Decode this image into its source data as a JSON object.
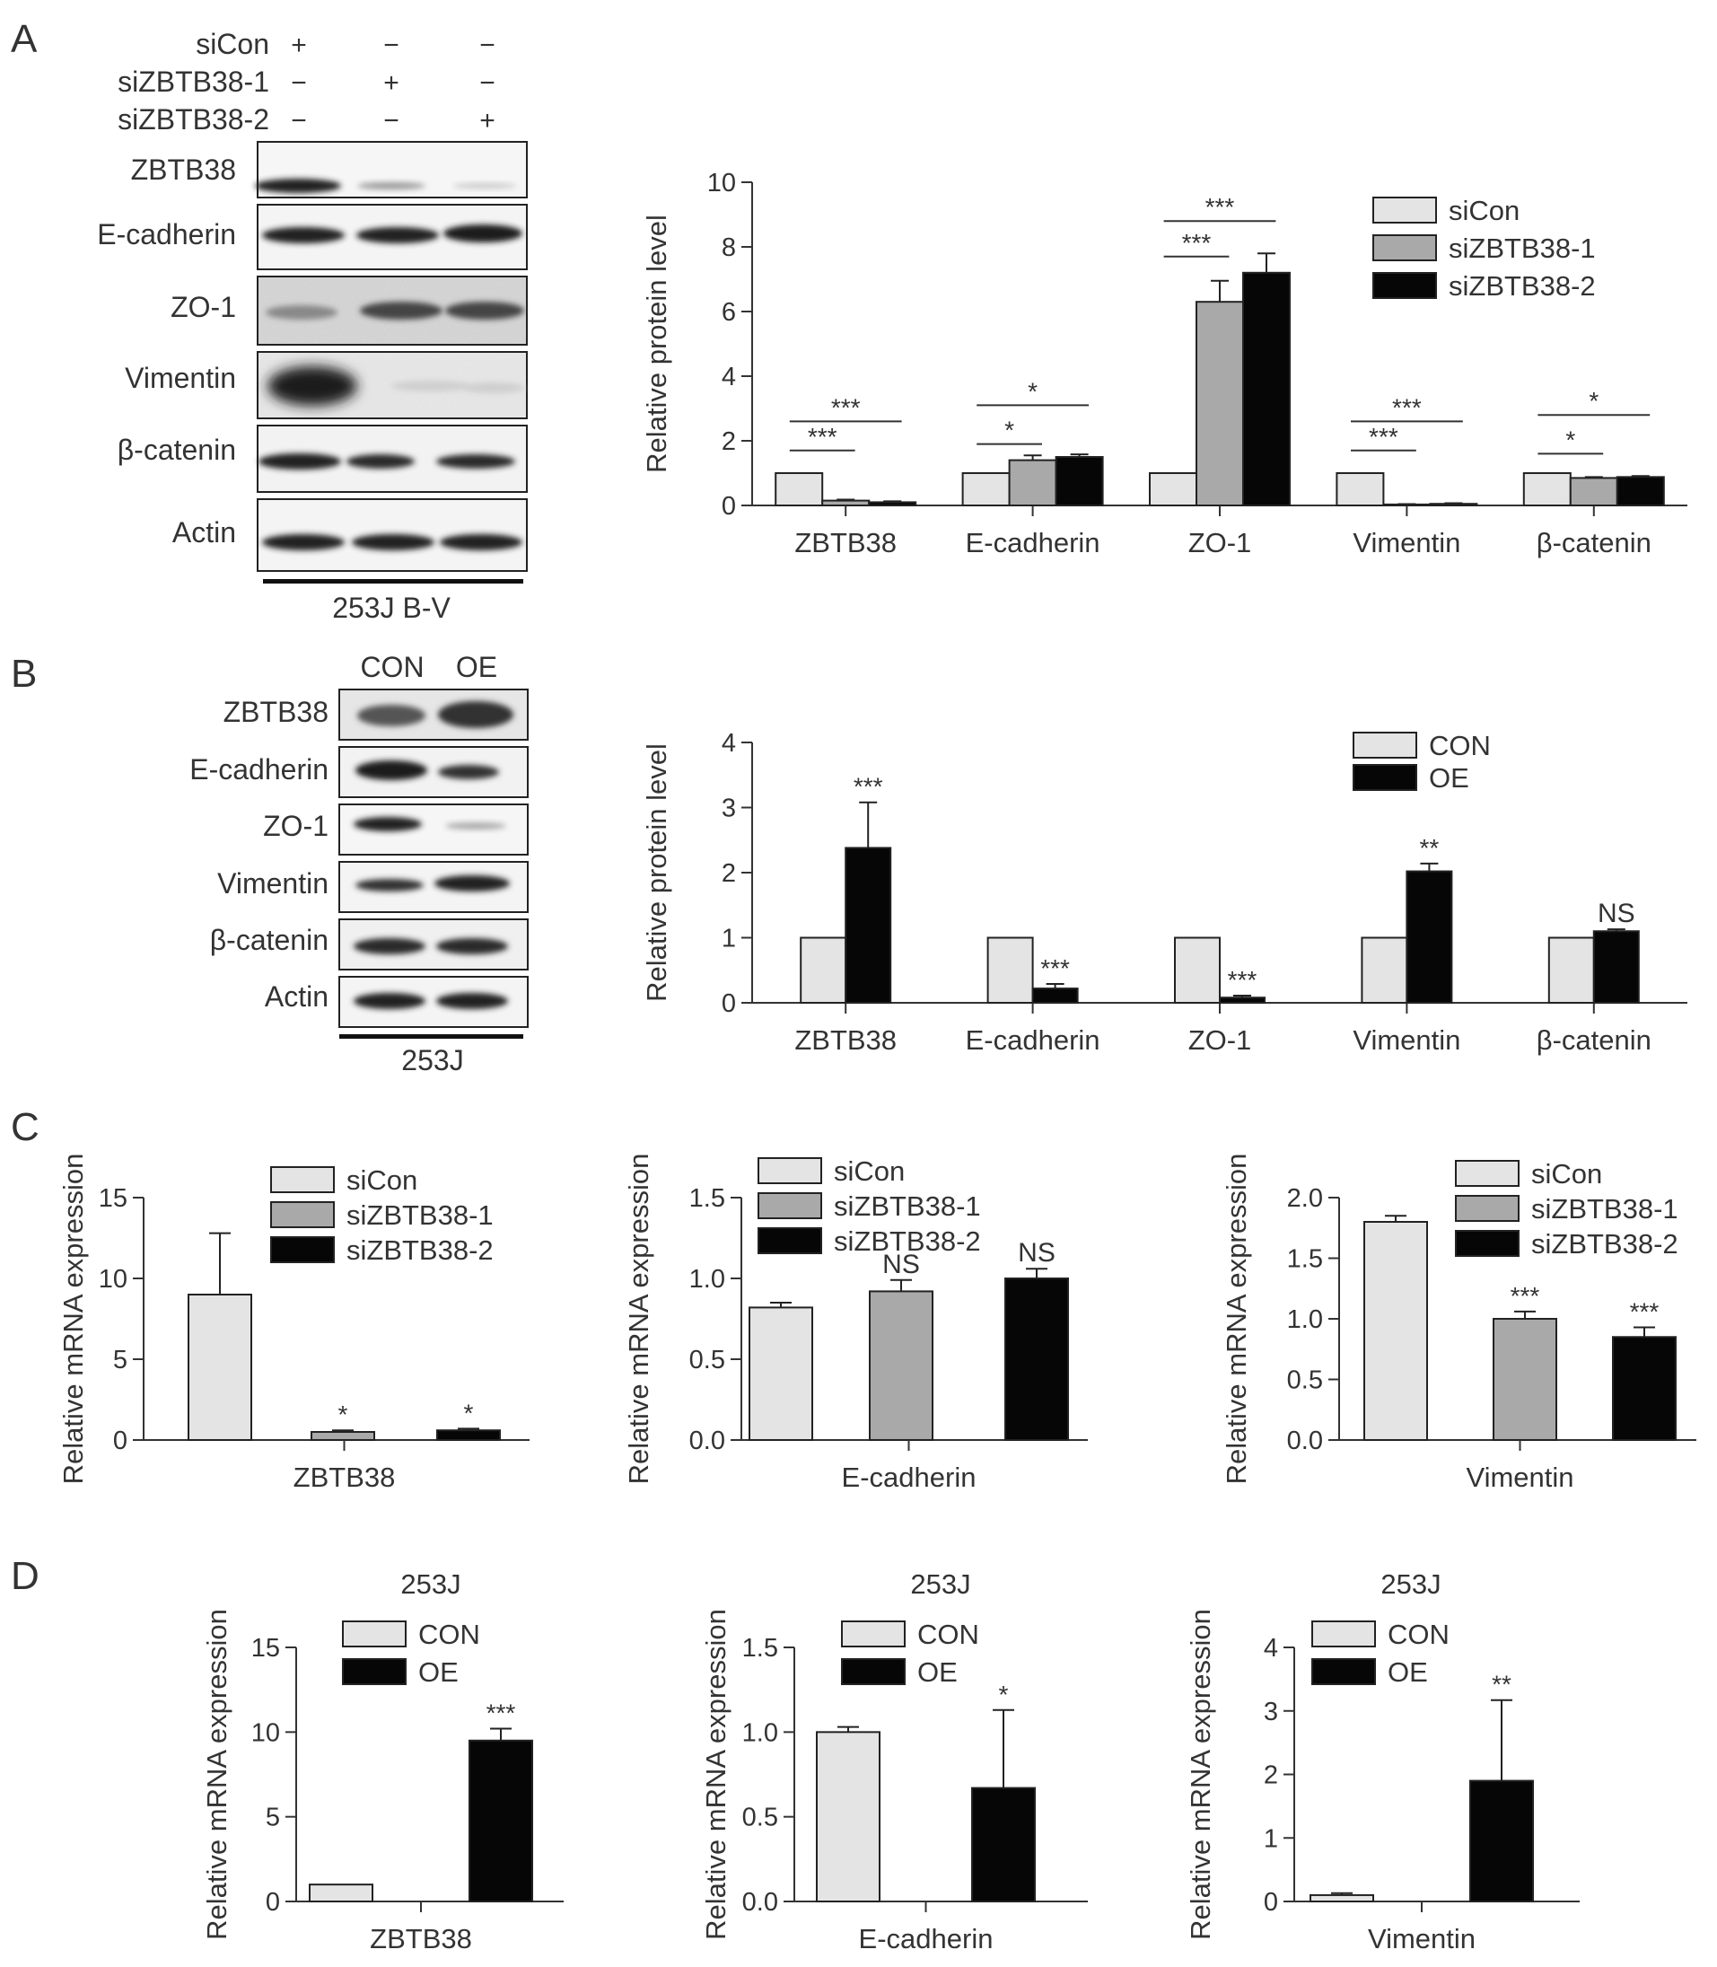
{
  "colors": {
    "light": "#e4e4e4",
    "gray": "#a9a9a9",
    "black": "#060606",
    "text": "#333333"
  },
  "panel_letters": [
    "A",
    "B",
    "C",
    "D"
  ],
  "panelA_blot": {
    "conditions": [
      {
        "label": "siCon",
        "marks": [
          "+",
          "−",
          "−"
        ]
      },
      {
        "label": "siZBTB38-1",
        "marks": [
          "−",
          "+",
          "−"
        ]
      },
      {
        "label": "siZBTB38-2",
        "marks": [
          "−",
          "−",
          "+"
        ]
      }
    ],
    "rows": [
      "ZBTB38",
      "E-cadherin",
      "ZO-1",
      "Vimentin",
      "β-catenin",
      "Actin"
    ],
    "cell_line": "253J B-V"
  },
  "panelB_blot": {
    "lanes": [
      "CON",
      "OE"
    ],
    "rows": [
      "ZBTB38",
      "E-cadherin",
      "ZO-1",
      "Vimentin",
      "β-catenin",
      "Actin"
    ],
    "cell_line": "253J"
  },
  "chart_data": [
    {
      "panel": "A",
      "type": "bar",
      "ylabel": "Relative protein level",
      "ylim": [
        0,
        10
      ],
      "yticks": [
        0,
        2,
        4,
        6,
        8,
        10
      ],
      "categories": [
        "ZBTB38",
        "E-cadherin",
        "ZO-1",
        "Vimentin",
        "β-catenin"
      ],
      "legend": "top-right",
      "series": [
        {
          "name": "siCon",
          "color": "light",
          "values": [
            1,
            1,
            1,
            1,
            1
          ],
          "errors": [
            0,
            0,
            0,
            0,
            0
          ]
        },
        {
          "name": "siZBTB38-1",
          "color": "gray",
          "values": [
            0.15,
            1.4,
            6.3,
            0.03,
            0.85
          ],
          "errors": [
            0.03,
            0.15,
            0.65,
            0.01,
            0.03
          ]
        },
        {
          "name": "siZBTB38-2",
          "color": "black",
          "values": [
            0.1,
            1.5,
            7.2,
            0.05,
            0.88
          ],
          "errors": [
            0.03,
            0.08,
            0.6,
            0.02,
            0.03
          ]
        }
      ],
      "brackets": [
        {
          "cat": 0,
          "from": 0,
          "to": 1,
          "label": "***",
          "y": 1.7
        },
        {
          "cat": 0,
          "from": 0,
          "to": 2,
          "label": "***",
          "y": 2.6
        },
        {
          "cat": 1,
          "from": 0,
          "to": 1,
          "label": "*",
          "y": 1.9
        },
        {
          "cat": 1,
          "from": 0,
          "to": 2,
          "label": "*",
          "y": 3.1
        },
        {
          "cat": 2,
          "from": 0,
          "to": 1,
          "label": "***",
          "y": 7.7
        },
        {
          "cat": 2,
          "from": 0,
          "to": 2,
          "label": "***",
          "y": 8.8
        },
        {
          "cat": 3,
          "from": 0,
          "to": 1,
          "label": "***",
          "y": 1.7
        },
        {
          "cat": 3,
          "from": 0,
          "to": 2,
          "label": "***",
          "y": 2.6
        },
        {
          "cat": 4,
          "from": 0,
          "to": 1,
          "label": "*",
          "y": 1.6
        },
        {
          "cat": 4,
          "from": 0,
          "to": 2,
          "label": "*",
          "y": 2.8
        }
      ]
    },
    {
      "panel": "B",
      "type": "bar",
      "ylabel": "Relative protein level",
      "ylim": [
        0,
        4
      ],
      "yticks": [
        0,
        1,
        2,
        3,
        4
      ],
      "categories": [
        "ZBTB38",
        "E-cadherin",
        "ZO-1",
        "Vimentin",
        "β-catenin"
      ],
      "legend": "top-right",
      "series": [
        {
          "name": "CON",
          "color": "light",
          "values": [
            1,
            1,
            1,
            1,
            1
          ],
          "errors": [
            0,
            0,
            0,
            0,
            0
          ]
        },
        {
          "name": "OE",
          "color": "black",
          "values": [
            2.38,
            0.22,
            0.08,
            2.02,
            1.1
          ],
          "errors": [
            0.7,
            0.07,
            0.03,
            0.12,
            0.03
          ]
        }
      ],
      "annotations": [
        {
          "cat": 0,
          "series": 1,
          "label": "***"
        },
        {
          "cat": 1,
          "series": 1,
          "label": "***"
        },
        {
          "cat": 2,
          "series": 1,
          "label": "***"
        },
        {
          "cat": 3,
          "series": 1,
          "label": "**"
        },
        {
          "cat": 4,
          "series": 1,
          "label": "NS"
        }
      ]
    },
    {
      "panel": "C",
      "type": "bar",
      "xlabel": "ZBTB38",
      "ylabel": "Relative mRNA expression",
      "ylim": [
        0,
        15
      ],
      "yticks": [
        0,
        5,
        10,
        15
      ],
      "legend": "top-right",
      "series": [
        {
          "name": "siCon",
          "color": "light",
          "value": 9.0,
          "error": 3.8,
          "label": ""
        },
        {
          "name": "siZBTB38-1",
          "color": "gray",
          "value": 0.5,
          "error": 0.1,
          "label": "*"
        },
        {
          "name": "siZBTB38-2",
          "color": "black",
          "value": 0.6,
          "error": 0.1,
          "label": "*"
        }
      ]
    },
    {
      "panel": "C",
      "type": "bar",
      "xlabel": "E-cadherin",
      "ylabel": "Relative mRNA expression",
      "ylim": [
        0,
        1.5
      ],
      "yticks": [
        "0.0",
        "0.5",
        "1.0",
        "1.5"
      ],
      "legend": "top-right",
      "series": [
        {
          "name": "siCon",
          "color": "light",
          "value": 0.82,
          "error": 0.03,
          "label": ""
        },
        {
          "name": "siZBTB38-1",
          "color": "gray",
          "value": 0.92,
          "error": 0.07,
          "label": "NS"
        },
        {
          "name": "siZBTB38-2",
          "color": "black",
          "value": 1.0,
          "error": 0.06,
          "label": "NS"
        }
      ]
    },
    {
      "panel": "C",
      "type": "bar",
      "xlabel": "Vimentin",
      "ylabel": "Relative mRNA expression",
      "ylim": [
        0,
        2.0
      ],
      "yticks": [
        "0.0",
        "0.5",
        "1.0",
        "1.5",
        "2.0"
      ],
      "legend": "top-right",
      "series": [
        {
          "name": "siCon",
          "color": "light",
          "value": 1.8,
          "error": 0.05,
          "label": ""
        },
        {
          "name": "siZBTB38-1",
          "color": "gray",
          "value": 1.0,
          "error": 0.06,
          "label": "***"
        },
        {
          "name": "siZBTB38-2",
          "color": "black",
          "value": 0.85,
          "error": 0.08,
          "label": "***"
        }
      ]
    },
    {
      "panel": "D",
      "type": "bar",
      "title": "253J",
      "xlabel": "ZBTB38",
      "ylabel": "Relative mRNA expression",
      "ylim": [
        0,
        15
      ],
      "yticks": [
        0,
        5,
        10,
        15
      ],
      "legend": "top-left",
      "series": [
        {
          "name": "CON",
          "color": "light",
          "value": 1.0,
          "error": 0,
          "label": ""
        },
        {
          "name": "OE",
          "color": "black",
          "value": 9.5,
          "error": 0.7,
          "label": "***"
        }
      ]
    },
    {
      "panel": "D",
      "type": "bar",
      "title": "253J",
      "xlabel": "E-cadherin",
      "ylabel": "Relative mRNA expression",
      "ylim": [
        0,
        1.5
      ],
      "yticks": [
        "0.0",
        "0.5",
        "1.0",
        "1.5"
      ],
      "legend": "top-left",
      "series": [
        {
          "name": "CON",
          "color": "light",
          "value": 1.0,
          "error": 0.03,
          "label": ""
        },
        {
          "name": "OE",
          "color": "black",
          "value": 0.67,
          "error": 0.46,
          "label": "*"
        }
      ]
    },
    {
      "panel": "D",
      "type": "bar",
      "title": "253J",
      "xlabel": "Vimentin",
      "ylabel": "Relative mRNA expression",
      "ylim": [
        0,
        4
      ],
      "yticks": [
        0,
        1,
        2,
        3,
        4
      ],
      "legend": "top-left",
      "series": [
        {
          "name": "CON",
          "color": "light",
          "value": 0.1,
          "error": 0.03,
          "label": ""
        },
        {
          "name": "OE",
          "color": "black",
          "value": 1.9,
          "error": 1.27,
          "label": "**"
        }
      ]
    }
  ]
}
